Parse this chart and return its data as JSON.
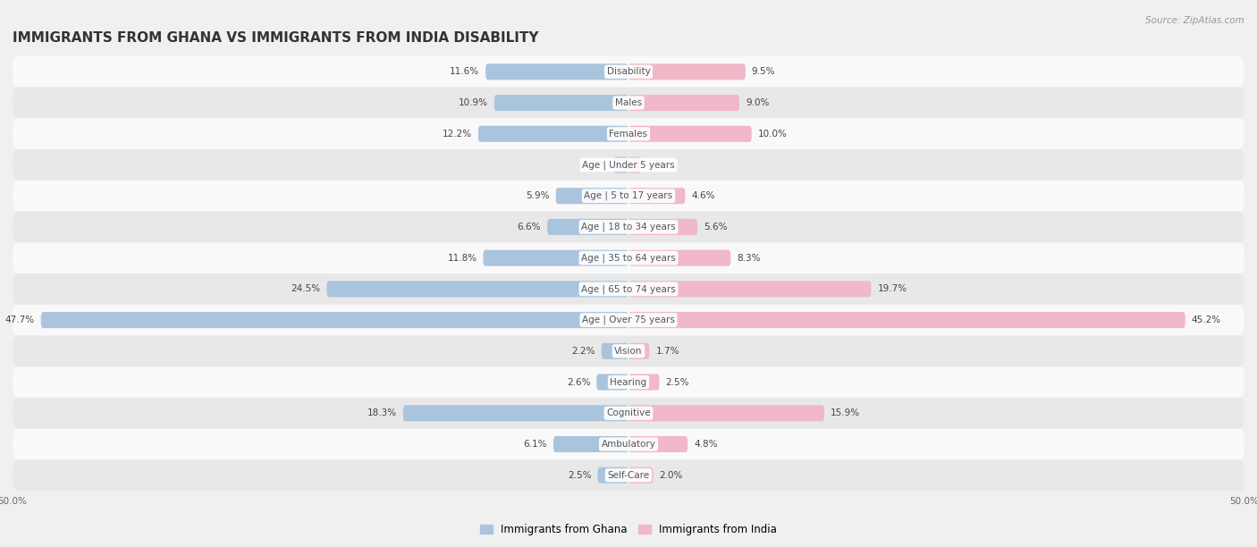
{
  "title": "IMMIGRANTS FROM GHANA VS IMMIGRANTS FROM INDIA DISABILITY",
  "source": "Source: ZipAtlas.com",
  "categories": [
    "Disability",
    "Males",
    "Females",
    "Age | Under 5 years",
    "Age | 5 to 17 years",
    "Age | 18 to 34 years",
    "Age | 35 to 64 years",
    "Age | 65 to 74 years",
    "Age | Over 75 years",
    "Vision",
    "Hearing",
    "Cognitive",
    "Ambulatory",
    "Self-Care"
  ],
  "ghana_values": [
    11.6,
    10.9,
    12.2,
    1.2,
    5.9,
    6.6,
    11.8,
    24.5,
    47.7,
    2.2,
    2.6,
    18.3,
    6.1,
    2.5
  ],
  "india_values": [
    9.5,
    9.0,
    10.0,
    1.0,
    4.6,
    5.6,
    8.3,
    19.7,
    45.2,
    1.7,
    2.5,
    15.9,
    4.8,
    2.0
  ],
  "ghana_color": "#aac4de",
  "india_color": "#f0b8c8",
  "axis_max": 50.0,
  "background_color": "#f0f0f0",
  "row_bg_light": "#f9f9f9",
  "row_bg_dark": "#e8e8e8",
  "title_fontsize": 11,
  "label_fontsize": 7.5,
  "tick_fontsize": 7.5,
  "legend_fontsize": 8.5,
  "bar_height": 0.52,
  "ghana_legend": "Immigrants from Ghana",
  "india_legend": "Immigrants from India"
}
